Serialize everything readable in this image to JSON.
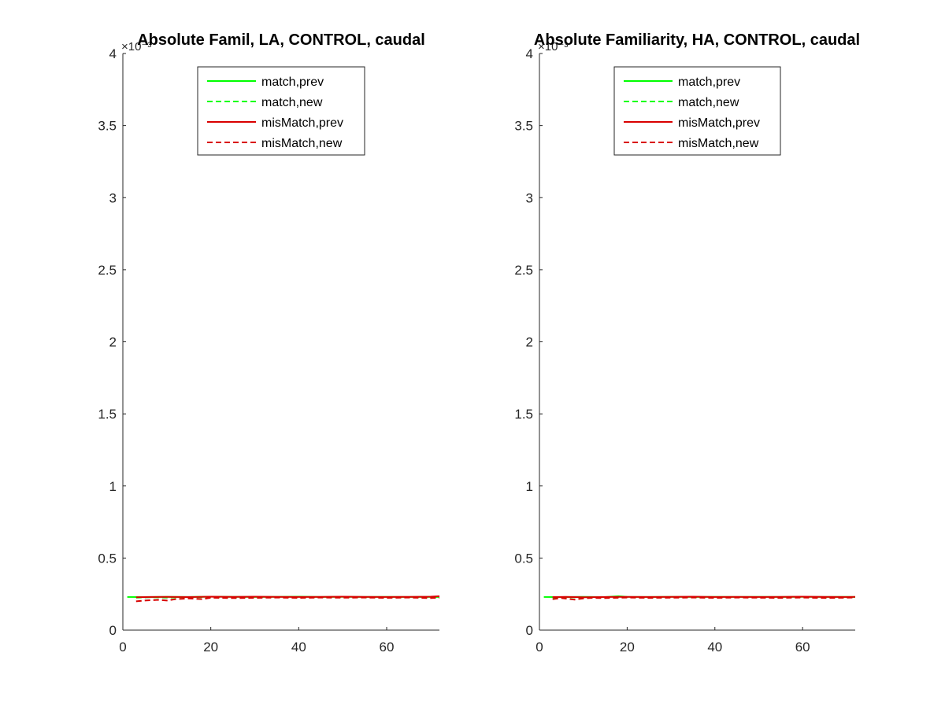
{
  "chart_data": [
    {
      "type": "line",
      "title": "Absolute Famil, LA, CONTROL, caudal",
      "xlim": [
        0,
        72
      ],
      "ylim": [
        0,
        4
      ],
      "xticks": [
        0,
        20,
        40,
        60
      ],
      "xtick_labels": [
        "0",
        "20",
        "40",
        "60"
      ],
      "yticks": [
        0,
        0.5,
        1,
        1.5,
        2,
        2.5,
        3,
        3.5,
        4
      ],
      "ytick_labels": [
        "0",
        "0.5",
        "1",
        "1.5",
        "2",
        "2.5",
        "3",
        "3.5",
        "4"
      ],
      "y_exponent_label": "×10⁻³",
      "grid": false,
      "legend_position": "top-center",
      "series": [
        {
          "name": "match,prev",
          "color": "#00ff00",
          "style": "solid",
          "x": [
            1,
            5,
            10,
            15,
            20,
            25,
            30,
            35,
            40,
            45,
            50,
            55,
            60,
            65,
            70,
            72
          ],
          "y": [
            0.23,
            0.229,
            0.231,
            0.23,
            0.232,
            0.231,
            0.23,
            0.231,
            0.232,
            0.23,
            0.231,
            0.23,
            0.231,
            0.23,
            0.231,
            0.23
          ]
        },
        {
          "name": "match,new",
          "color": "#00ff00",
          "style": "dashed",
          "x": [
            3,
            6,
            10,
            15,
            20,
            25,
            30,
            35,
            40,
            45,
            50,
            55,
            60,
            65,
            70,
            72
          ],
          "y": [
            0.225,
            0.228,
            0.226,
            0.229,
            0.228,
            0.227,
            0.229,
            0.228,
            0.227,
            0.229,
            0.228,
            0.227,
            0.228,
            0.227,
            0.228,
            0.229
          ]
        },
        {
          "name": "misMatch,prev",
          "color": "#d90000",
          "style": "solid",
          "x": [
            3,
            6,
            10,
            15,
            20,
            25,
            30,
            35,
            40,
            45,
            50,
            55,
            60,
            65,
            70,
            72
          ],
          "y": [
            0.228,
            0.23,
            0.231,
            0.229,
            0.232,
            0.231,
            0.232,
            0.231,
            0.23,
            0.231,
            0.232,
            0.231,
            0.23,
            0.231,
            0.232,
            0.235
          ]
        },
        {
          "name": "misMatch,new",
          "color": "#d90000",
          "style": "dashed",
          "x": [
            3,
            5,
            8,
            10,
            12,
            15,
            18,
            20,
            25,
            30,
            35,
            40,
            45,
            50,
            55,
            60,
            65,
            70,
            72
          ],
          "y": [
            0.2,
            0.205,
            0.21,
            0.205,
            0.215,
            0.22,
            0.215,
            0.225,
            0.222,
            0.224,
            0.226,
            0.224,
            0.226,
            0.225,
            0.226,
            0.224,
            0.226,
            0.222,
            0.225
          ]
        }
      ]
    },
    {
      "type": "line",
      "title": "Absolute Familiarity, HA, CONTROL, caudal",
      "xlim": [
        0,
        72
      ],
      "ylim": [
        0,
        4
      ],
      "xticks": [
        0,
        20,
        40,
        60
      ],
      "xtick_labels": [
        "0",
        "20",
        "40",
        "60"
      ],
      "yticks": [
        0,
        0.5,
        1,
        1.5,
        2,
        2.5,
        3,
        3.5,
        4
      ],
      "ytick_labels": [
        "0",
        "0.5",
        "1",
        "1.5",
        "2",
        "2.5",
        "3",
        "3.5",
        "4"
      ],
      "y_exponent_label": "×10⁻³",
      "grid": false,
      "legend_position": "top-center",
      "series": [
        {
          "name": "match,prev",
          "color": "#00ff00",
          "style": "solid",
          "x": [
            1,
            5,
            10,
            15,
            18,
            20,
            25,
            30,
            35,
            40,
            45,
            50,
            55,
            60,
            65,
            70,
            72
          ],
          "y": [
            0.23,
            0.229,
            0.231,
            0.229,
            0.235,
            0.231,
            0.23,
            0.231,
            0.23,
            0.231,
            0.23,
            0.231,
            0.23,
            0.231,
            0.23,
            0.231,
            0.23
          ]
        },
        {
          "name": "match,new",
          "color": "#00ff00",
          "style": "dashed",
          "x": [
            3,
            6,
            10,
            15,
            20,
            25,
            30,
            35,
            40,
            45,
            50,
            55,
            60,
            65,
            70,
            72
          ],
          "y": [
            0.226,
            0.228,
            0.227,
            0.229,
            0.228,
            0.227,
            0.229,
            0.228,
            0.228,
            0.229,
            0.227,
            0.228,
            0.229,
            0.227,
            0.228,
            0.228
          ]
        },
        {
          "name": "misMatch,prev",
          "color": "#d90000",
          "style": "solid",
          "x": [
            3,
            6,
            10,
            15,
            20,
            25,
            30,
            35,
            40,
            45,
            50,
            55,
            60,
            65,
            70,
            72
          ],
          "y": [
            0.229,
            0.231,
            0.228,
            0.23,
            0.231,
            0.23,
            0.231,
            0.232,
            0.23,
            0.231,
            0.23,
            0.231,
            0.232,
            0.231,
            0.23,
            0.231
          ]
        },
        {
          "name": "misMatch,new",
          "color": "#d90000",
          "style": "dashed",
          "x": [
            3,
            5,
            8,
            10,
            12,
            15,
            20,
            25,
            30,
            35,
            40,
            45,
            50,
            55,
            60,
            65,
            70,
            72
          ],
          "y": [
            0.215,
            0.222,
            0.212,
            0.22,
            0.224,
            0.222,
            0.226,
            0.224,
            0.225,
            0.226,
            0.224,
            0.226,
            0.225,
            0.224,
            0.226,
            0.223,
            0.225,
            0.226
          ]
        }
      ]
    }
  ]
}
